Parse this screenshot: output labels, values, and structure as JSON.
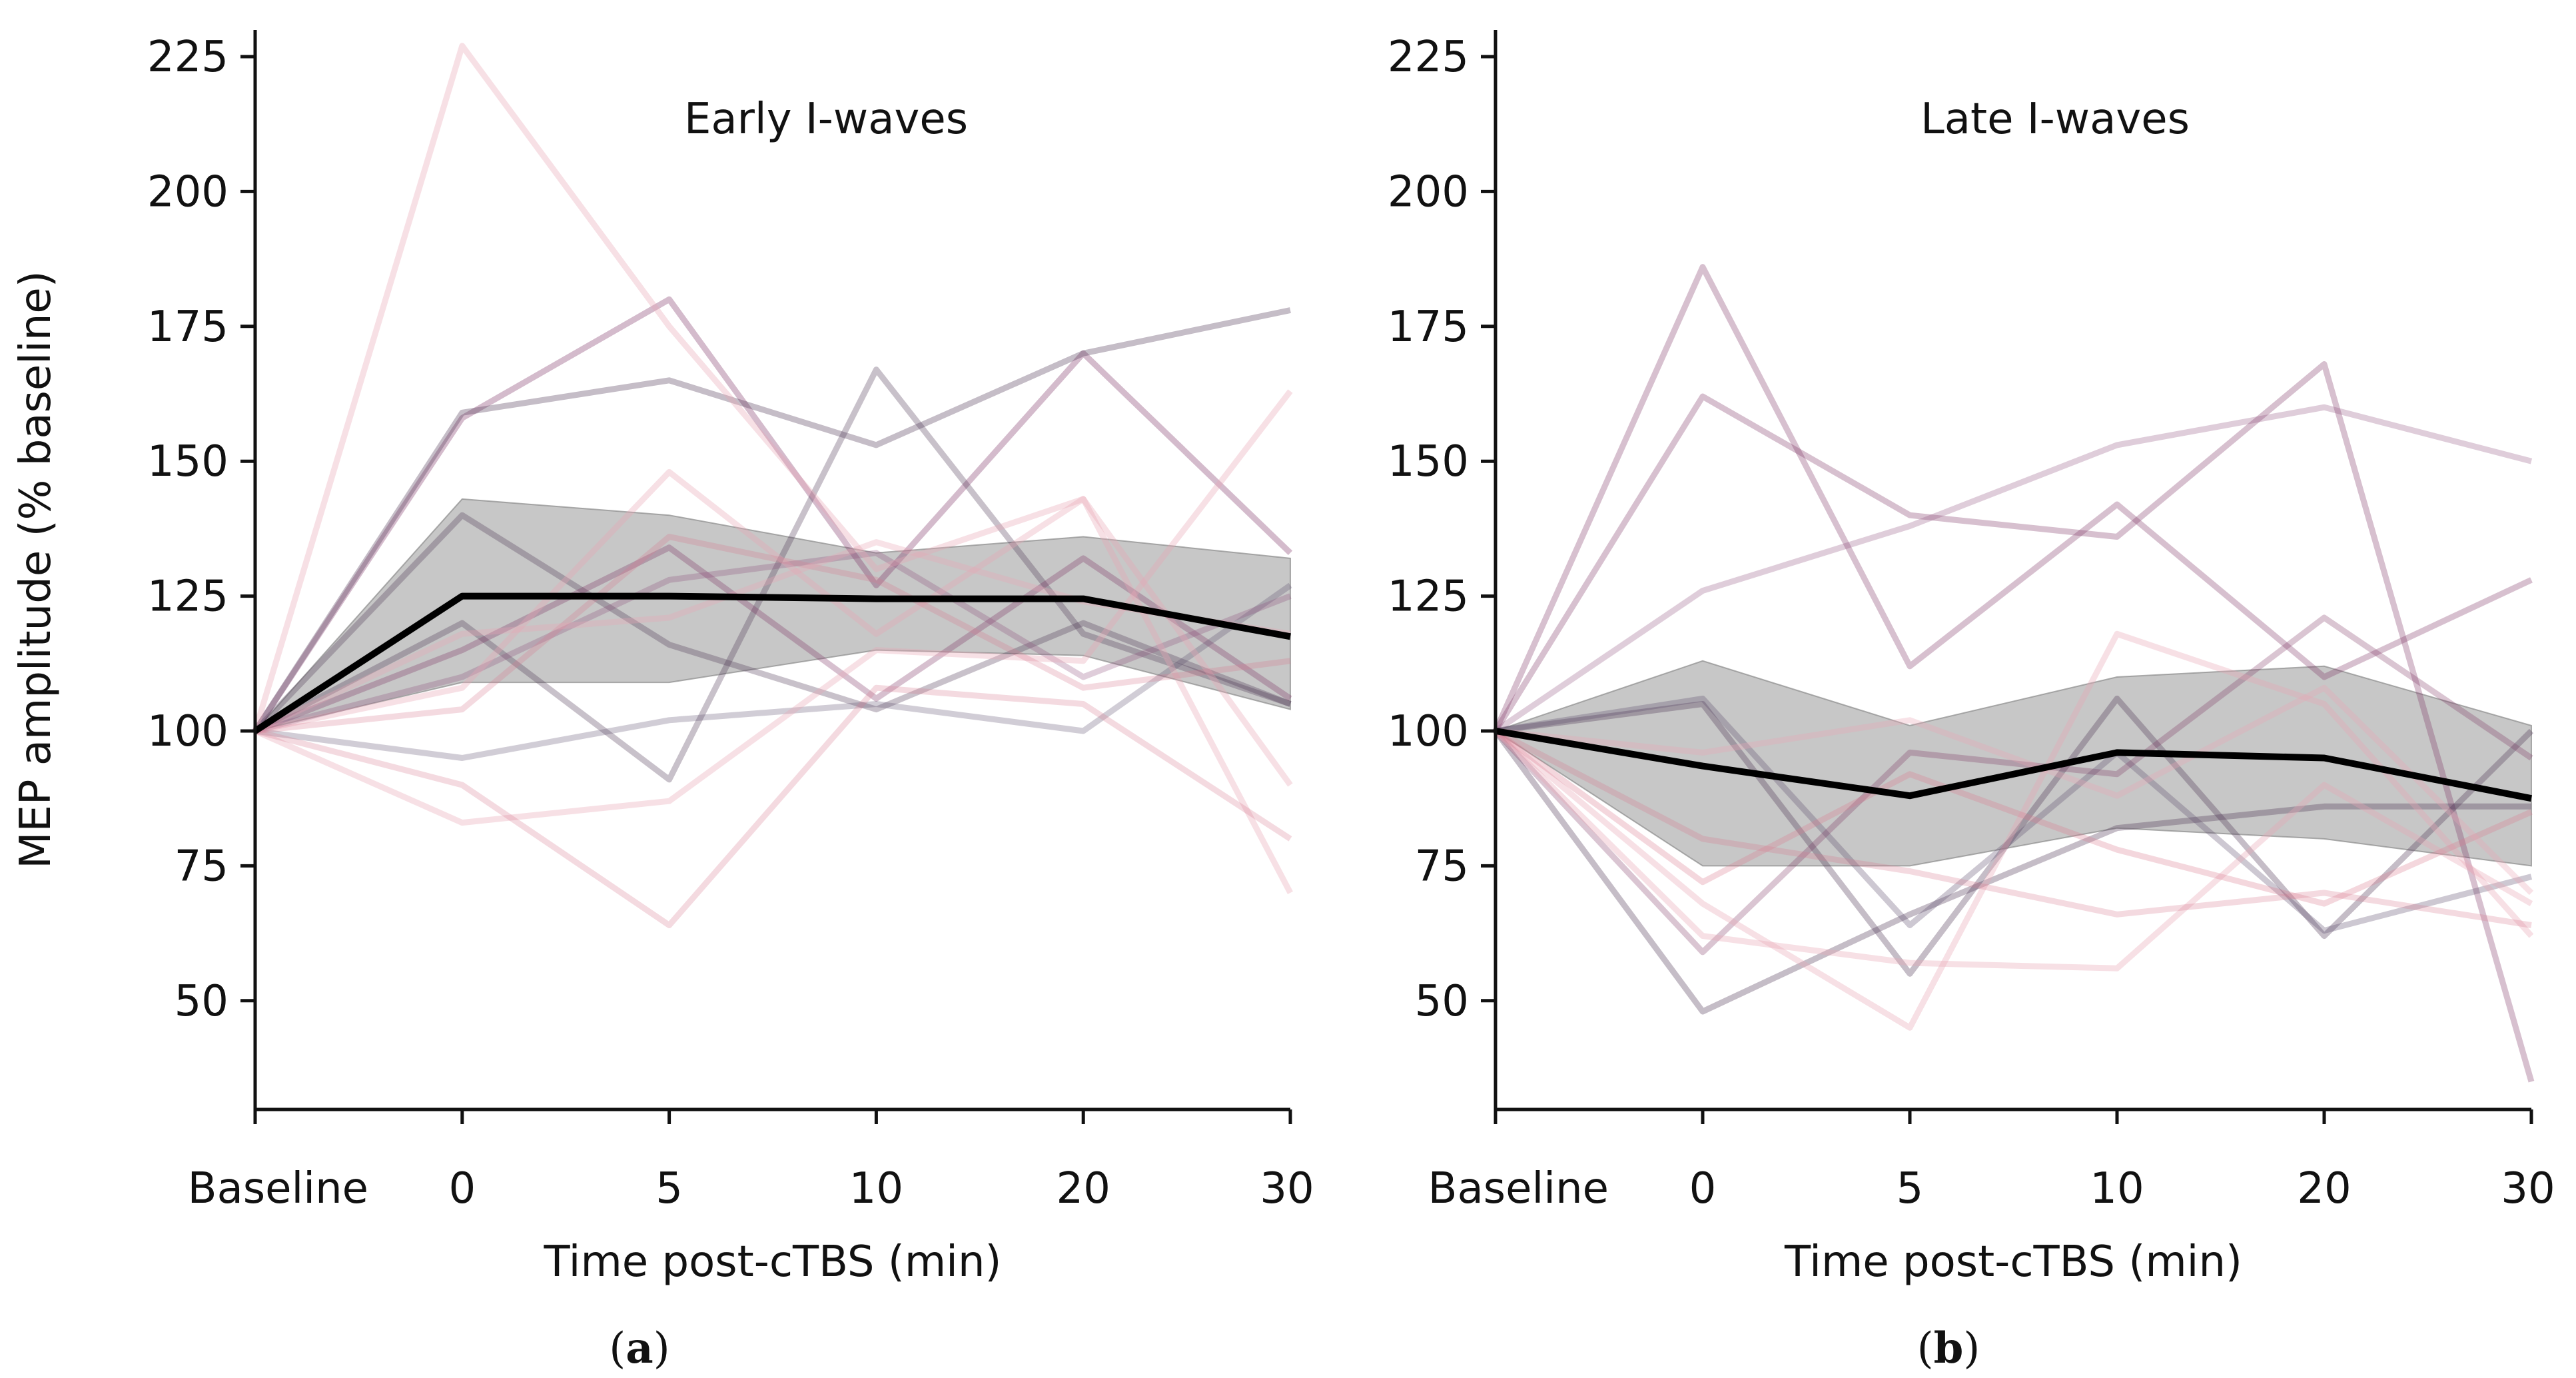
{
  "figure": {
    "ylabel": "MEP amplitude (% baseline)",
    "colors": {
      "mean_line": "#000000",
      "band_fill": "#b4b4b4",
      "axis": "#111111",
      "subject_palette": [
        "#7a2d5f",
        "#4a3350",
        "#d97b8e",
        "#e9a6b4",
        "#5b4a6a",
        "#8b4a7a"
      ]
    }
  },
  "chart_data": [
    {
      "type": "line",
      "id": "a",
      "caption_letter": "a",
      "title": "Early I-waves",
      "xlabel": "Time post-cTBS (min)",
      "ylabel": "MEP amplitude (% baseline)",
      "categories": [
        "Baseline",
        "0",
        "5",
        "10",
        "20",
        "30"
      ],
      "ylim": [
        30,
        232
      ],
      "yticks": [
        50,
        75,
        100,
        125,
        150,
        175,
        200,
        225
      ],
      "mean": [
        100,
        125,
        125,
        124.5,
        124.5,
        117.5
      ],
      "band_upper": [
        100,
        143,
        140,
        133,
        136,
        132
      ],
      "band_lower": [
        100,
        109,
        109,
        115,
        114,
        104
      ],
      "subjects": [
        {
          "values": [
            100,
            158,
            180,
            127,
            170,
            133
          ],
          "color": "#7a2d5f",
          "opacity": 0.32
        },
        {
          "values": [
            100,
            159,
            165,
            153,
            170,
            178
          ],
          "color": "#4a3350",
          "opacity": 0.32
        },
        {
          "values": [
            100,
            140,
            116,
            104,
            120,
            105
          ],
          "color": "#4a3350",
          "opacity": 0.3
        },
        {
          "values": [
            100,
            120,
            91,
            167,
            118,
            105
          ],
          "color": "#4a3350",
          "opacity": 0.3
        },
        {
          "values": [
            100,
            115,
            134,
            106,
            132,
            106
          ],
          "color": "#7a2d5f",
          "opacity": 0.3
        },
        {
          "values": [
            100,
            95,
            102,
            105,
            100,
            127
          ],
          "color": "#5b4a6a",
          "opacity": 0.28
        },
        {
          "values": [
            100,
            110,
            128,
            133,
            110,
            125
          ],
          "color": "#8b4a7a",
          "opacity": 0.28
        },
        {
          "values": [
            100,
            227,
            175,
            130,
            143,
            70
          ],
          "color": "#e9a6b4",
          "opacity": 0.35
        },
        {
          "values": [
            100,
            108,
            148,
            118,
            143,
            90
          ],
          "color": "#e9a6b4",
          "opacity": 0.35
        },
        {
          "values": [
            100,
            83,
            87,
            115,
            113,
            163
          ],
          "color": "#e9a6b4",
          "opacity": 0.35
        },
        {
          "values": [
            100,
            90,
            64,
            108,
            105,
            80
          ],
          "color": "#d97b8e",
          "opacity": 0.28
        },
        {
          "values": [
            100,
            104,
            136,
            128,
            108,
            113
          ],
          "color": "#d97b8e",
          "opacity": 0.28
        },
        {
          "values": [
            100,
            118,
            121,
            135,
            124,
            118
          ],
          "color": "#e9a6b4",
          "opacity": 0.32
        }
      ]
    },
    {
      "type": "line",
      "id": "b",
      "caption_letter": "b",
      "title": "Late I-waves",
      "xlabel": "Time post-cTBS (min)",
      "ylabel": "MEP amplitude (% baseline)",
      "categories": [
        "Baseline",
        "0",
        "5",
        "10",
        "20",
        "30"
      ],
      "ylim": [
        30,
        232
      ],
      "yticks": [
        50,
        75,
        100,
        125,
        150,
        175,
        200,
        225
      ],
      "mean": [
        100,
        93.5,
        88,
        96,
        95,
        87.5
      ],
      "band_upper": [
        100,
        113,
        101,
        110,
        112,
        101
      ],
      "band_lower": [
        100,
        75,
        75,
        82,
        80,
        75
      ],
      "subjects": [
        {
          "values": [
            100,
            186,
            112,
            142,
            110,
            128
          ],
          "color": "#7a2d5f",
          "opacity": 0.3
        },
        {
          "values": [
            100,
            162,
            140,
            136,
            168,
            35
          ],
          "color": "#7a2d5f",
          "opacity": 0.3
        },
        {
          "values": [
            100,
            126,
            138,
            153,
            160,
            150
          ],
          "color": "#8b4a7a",
          "opacity": 0.28
        },
        {
          "values": [
            100,
            105,
            55,
            106,
            62,
            100
          ],
          "color": "#4a3350",
          "opacity": 0.32
        },
        {
          "values": [
            100,
            48,
            66,
            82,
            86,
            86
          ],
          "color": "#4a3350",
          "opacity": 0.32
        },
        {
          "values": [
            100,
            106,
            64,
            96,
            63,
            73
          ],
          "color": "#5b4a6a",
          "opacity": 0.3
        },
        {
          "values": [
            100,
            59,
            96,
            92,
            121,
            95
          ],
          "color": "#7a2d5f",
          "opacity": 0.28
        },
        {
          "values": [
            100,
            68,
            45,
            118,
            105,
            62
          ],
          "color": "#e9a6b4",
          "opacity": 0.35
        },
        {
          "values": [
            100,
            62,
            57,
            56,
            90,
            68
          ],
          "color": "#e9a6b4",
          "opacity": 0.35
        },
        {
          "values": [
            100,
            72,
            92,
            78,
            68,
            85
          ],
          "color": "#d97b8e",
          "opacity": 0.3
        },
        {
          "values": [
            100,
            96,
            102,
            88,
            108,
            70
          ],
          "color": "#e9a6b4",
          "opacity": 0.32
        },
        {
          "values": [
            100,
            80,
            74,
            66,
            70,
            64
          ],
          "color": "#d97b8e",
          "opacity": 0.28
        }
      ]
    }
  ]
}
